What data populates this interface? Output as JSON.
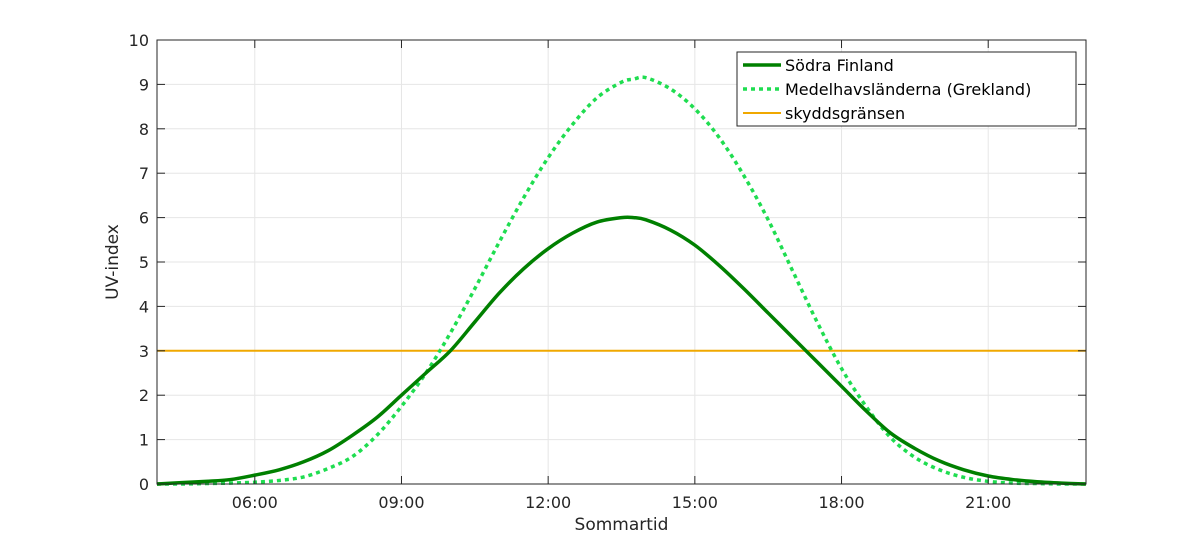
{
  "chart_data": {
    "type": "line",
    "title": "",
    "xlabel": "Sommartid",
    "ylabel": "UV-index",
    "xlim": [
      4.0,
      23.0
    ],
    "ylim": [
      0,
      10
    ],
    "x_ticks": [
      6,
      9,
      12,
      15,
      18,
      21
    ],
    "x_tick_labels": [
      "06:00",
      "09:00",
      "12:00",
      "15:00",
      "18:00",
      "21:00"
    ],
    "y_ticks": [
      0,
      1,
      2,
      3,
      4,
      5,
      6,
      7,
      8,
      9,
      10
    ],
    "y_tick_labels": [
      "0",
      "1",
      "2",
      "3",
      "4",
      "5",
      "6",
      "7",
      "8",
      "9",
      "10"
    ],
    "grid": true,
    "legend_position": "top-right",
    "x": [
      4.0,
      4.5,
      5.0,
      5.5,
      6.0,
      6.5,
      7.0,
      7.5,
      8.0,
      8.5,
      9.0,
      9.5,
      10.0,
      10.5,
      11.0,
      11.5,
      12.0,
      12.5,
      13.0,
      13.5,
      13.75,
      14.0,
      14.5,
      15.0,
      15.5,
      16.0,
      16.5,
      17.0,
      17.5,
      18.0,
      18.5,
      19.0,
      19.5,
      20.0,
      20.5,
      21.0,
      21.5,
      22.0,
      22.5,
      23.0
    ],
    "series": [
      {
        "name": "Södra Finland",
        "color": "#008000",
        "style": "solid",
        "values": [
          0.0,
          0.03,
          0.06,
          0.1,
          0.2,
          0.32,
          0.5,
          0.75,
          1.1,
          1.5,
          2.0,
          2.5,
          3.0,
          3.65,
          4.3,
          4.85,
          5.3,
          5.65,
          5.9,
          6.0,
          6.0,
          5.95,
          5.72,
          5.38,
          4.92,
          4.4,
          3.85,
          3.3,
          2.75,
          2.2,
          1.65,
          1.15,
          0.8,
          0.52,
          0.32,
          0.18,
          0.1,
          0.05,
          0.02,
          0.0
        ]
      },
      {
        "name": "Medelhavsländerna (Grekland)",
        "color": "#1fdd50",
        "style": "dotted",
        "values": [
          0.0,
          0.0,
          0.01,
          0.02,
          0.04,
          0.08,
          0.16,
          0.35,
          0.62,
          1.1,
          1.75,
          2.5,
          3.4,
          4.4,
          5.45,
          6.45,
          7.35,
          8.1,
          8.7,
          9.05,
          9.12,
          9.15,
          8.9,
          8.45,
          7.8,
          6.95,
          5.95,
          4.8,
          3.65,
          2.6,
          1.75,
          1.05,
          0.6,
          0.32,
          0.15,
          0.06,
          0.02,
          0.01,
          0.0,
          0.0
        ]
      },
      {
        "name": "skyddsgränsen",
        "color": "#f0a800",
        "style": "solid",
        "constant": 3
      }
    ]
  }
}
